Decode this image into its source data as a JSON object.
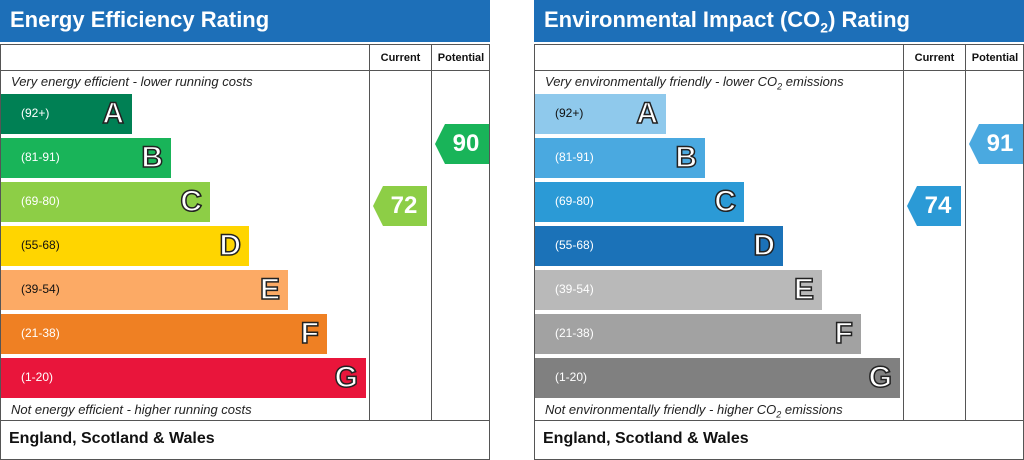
{
  "chart_data": [
    {
      "type": "bar",
      "title": "Energy Efficiency Rating",
      "columns": [
        "Current",
        "Potential"
      ],
      "top_caption": "Very energy efficient - lower running costs",
      "bottom_caption": "Not energy efficient - higher running costs",
      "footer": "England, Scotland & Wales",
      "bands": [
        {
          "letter": "A",
          "range": "(92+)",
          "color": "#008054"
        },
        {
          "letter": "B",
          "range": "(81-91)",
          "color": "#19b459"
        },
        {
          "letter": "C",
          "range": "(69-80)",
          "color": "#8dce46"
        },
        {
          "letter": "D",
          "range": "(55-68)",
          "color": "#ffd500"
        },
        {
          "letter": "E",
          "range": "(39-54)",
          "color": "#fcaa65"
        },
        {
          "letter": "F",
          "range": "(21-38)",
          "color": "#ef8023"
        },
        {
          "letter": "G",
          "range": "(1-20)",
          "color": "#e9153b"
        }
      ],
      "current": {
        "value": 72,
        "band": "C",
        "color": "#8dce46"
      },
      "potential": {
        "value": 90,
        "band": "B",
        "color": "#19b459"
      }
    },
    {
      "type": "bar",
      "title": "Environmental Impact (CO",
      "title_sub": "2",
      "title_suffix": ") Rating",
      "columns": [
        "Current",
        "Potential"
      ],
      "top_caption": "Very environmentally friendly - lower CO",
      "top_caption_sub": "2",
      "top_caption_suffix": " emissions",
      "bottom_caption": "Not environmentally friendly - higher CO",
      "bottom_caption_sub": "2",
      "bottom_caption_suffix": " emissions",
      "footer": "England, Scotland & Wales",
      "bands": [
        {
          "letter": "A",
          "range": "(92+)",
          "color": "#8fc9ec"
        },
        {
          "letter": "B",
          "range": "(81-91)",
          "color": "#4aa9e0"
        },
        {
          "letter": "C",
          "range": "(69-80)",
          "color": "#2b9ad6"
        },
        {
          "letter": "D",
          "range": "(55-68)",
          "color": "#1b72b8"
        },
        {
          "letter": "E",
          "range": "(39-54)",
          "color": "#b9b9b9"
        },
        {
          "letter": "F",
          "range": "(21-38)",
          "color": "#a2a2a2"
        },
        {
          "letter": "G",
          "range": "(1-20)",
          "color": "#808080"
        }
      ],
      "current": {
        "value": 74,
        "band": "C",
        "color": "#2b9ad6"
      },
      "potential": {
        "value": 91,
        "band": "B",
        "color": "#4aa9e0"
      }
    }
  ]
}
